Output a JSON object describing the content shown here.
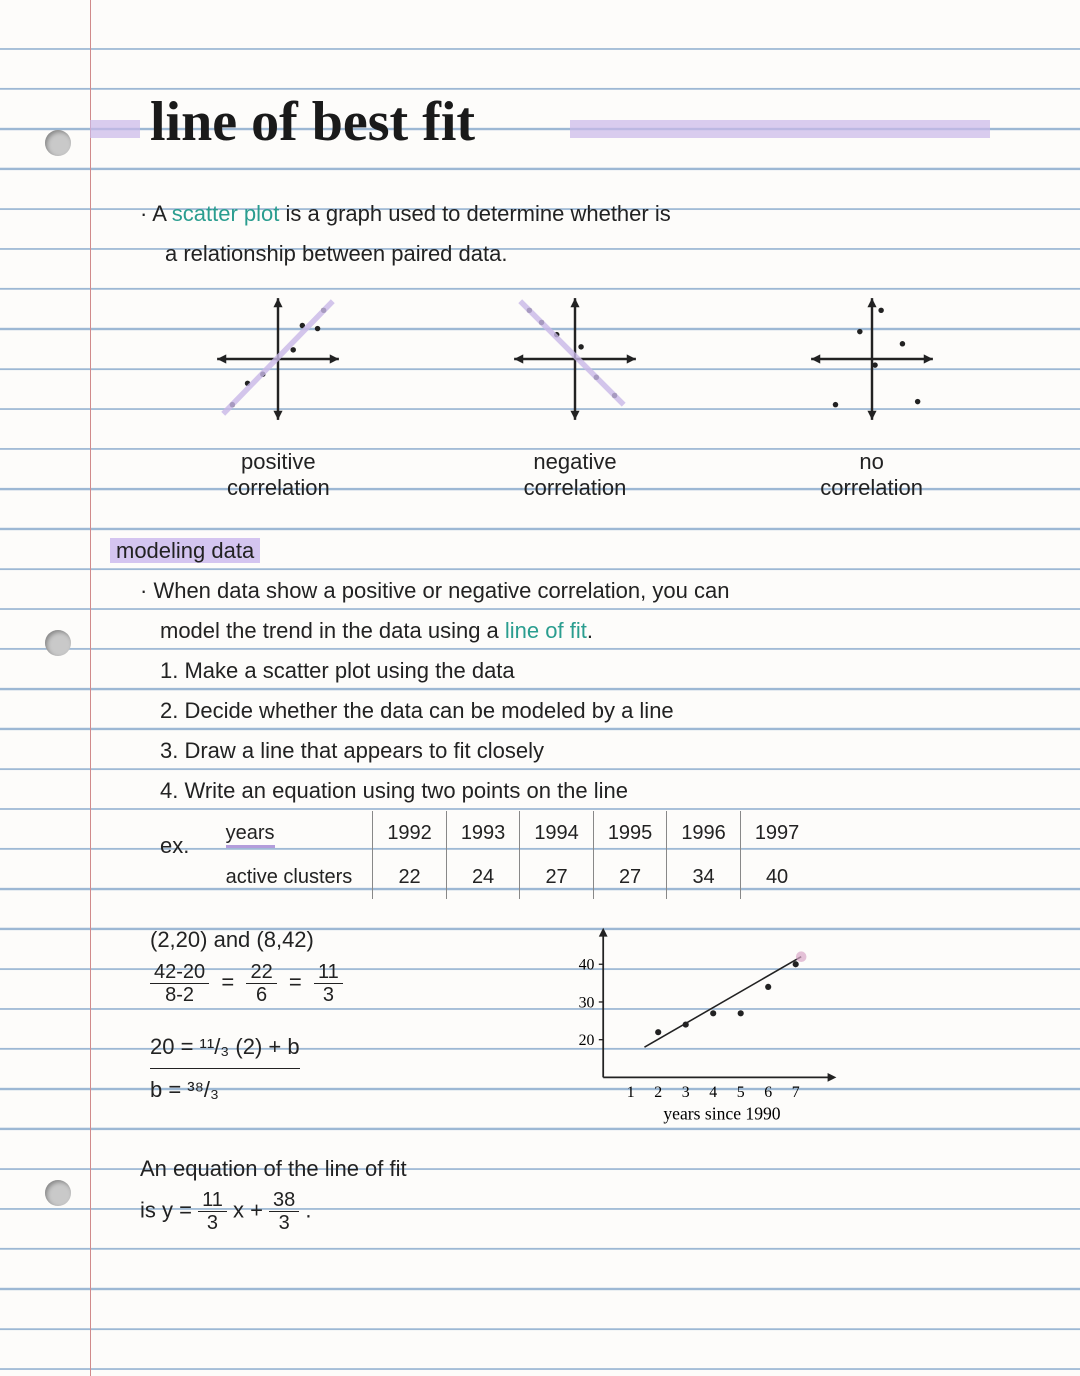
{
  "title": "line of best fit",
  "intro": {
    "l1": "· A scatter plot is a graph used to determine whether is",
    "l2": "a relationship between paired data.",
    "term": "scatter plot"
  },
  "corr_types": {
    "positive": {
      "l1": "positive",
      "l2": "correlation"
    },
    "negative": {
      "l1": "negative",
      "l2": "correlation"
    },
    "none": {
      "l1": "no",
      "l2": "correlation"
    }
  },
  "section2": {
    "heading": "modeling data",
    "l1": "· When data show a positive or negative correlation, you can",
    "l2": "model the trend in the data using a line of fit.",
    "term": "line of fit",
    "s1": "1. Make a scatter plot using the data",
    "s2": "2. Decide whether the data can be modeled by a line",
    "s3": "3. Draw a line that appears to fit closely",
    "s4": "4. Write an equation using two points on the line"
  },
  "example": {
    "label": "ex.",
    "row1_label": "years",
    "row2_label": "active clusters",
    "years": [
      "1992",
      "1993",
      "1994",
      "1995",
      "1996",
      "1997"
    ],
    "values": [
      "22",
      "24",
      "27",
      "27",
      "34",
      "40"
    ]
  },
  "calc": {
    "points": "(2,20) and (8,42)",
    "slope_n1": "42-20",
    "slope_d1": "8-2",
    "slope_n2": "22",
    "slope_d2": "6",
    "slope_n3": "11",
    "slope_d3": "3",
    "eq1": "20 = ¹¹/₃ (2) + b",
    "eq2": "b = ³⁸/₃",
    "concl1": "An equation of the line of fit",
    "concl2_a": "is  y = ",
    "concl2_b": " x + ",
    "concl2_c": "."
  },
  "example_chart": {
    "xlabel": "years since 1990",
    "xticks": [
      "1",
      "2",
      "3",
      "4",
      "5",
      "6",
      "7"
    ],
    "yticks": [
      "20",
      "30",
      "40"
    ],
    "points": [
      [
        2,
        22
      ],
      [
        3,
        24
      ],
      [
        4,
        27
      ],
      [
        5,
        27
      ],
      [
        6,
        34
      ],
      [
        7,
        40
      ]
    ],
    "line_start": [
      1.5,
      18
    ],
    "line_end": [
      7.2,
      42
    ],
    "colors": {
      "axis": "#222222",
      "dot": "#222222",
      "line_end_hl": "#d8a8c8"
    }
  },
  "mini": {
    "positive": {
      "pts": [
        [
          -1.5,
          -1.5
        ],
        [
          -1,
          -0.8
        ],
        [
          -0.5,
          -0.5
        ],
        [
          0.5,
          0.3
        ],
        [
          0.8,
          1.1
        ],
        [
          1.3,
          1.0
        ],
        [
          1.5,
          1.6
        ]
      ],
      "arrow": true,
      "arrow_color": "#c9b8e8"
    },
    "negative": {
      "pts": [
        [
          -1.5,
          1.6
        ],
        [
          -1.1,
          1.2
        ],
        [
          -0.6,
          0.8
        ],
        [
          0.2,
          0.4
        ],
        [
          0.7,
          -0.6
        ],
        [
          1.3,
          -1.2
        ]
      ],
      "arrow": true,
      "arrow_color": "#c9b8e8"
    },
    "none": {
      "pts": [
        [
          -1.2,
          -1.5
        ],
        [
          -0.4,
          0.9
        ],
        [
          0.3,
          1.6
        ],
        [
          1.0,
          0.5
        ],
        [
          1.5,
          -1.4
        ],
        [
          0.1,
          -0.2
        ]
      ],
      "arrow": false
    }
  }
}
